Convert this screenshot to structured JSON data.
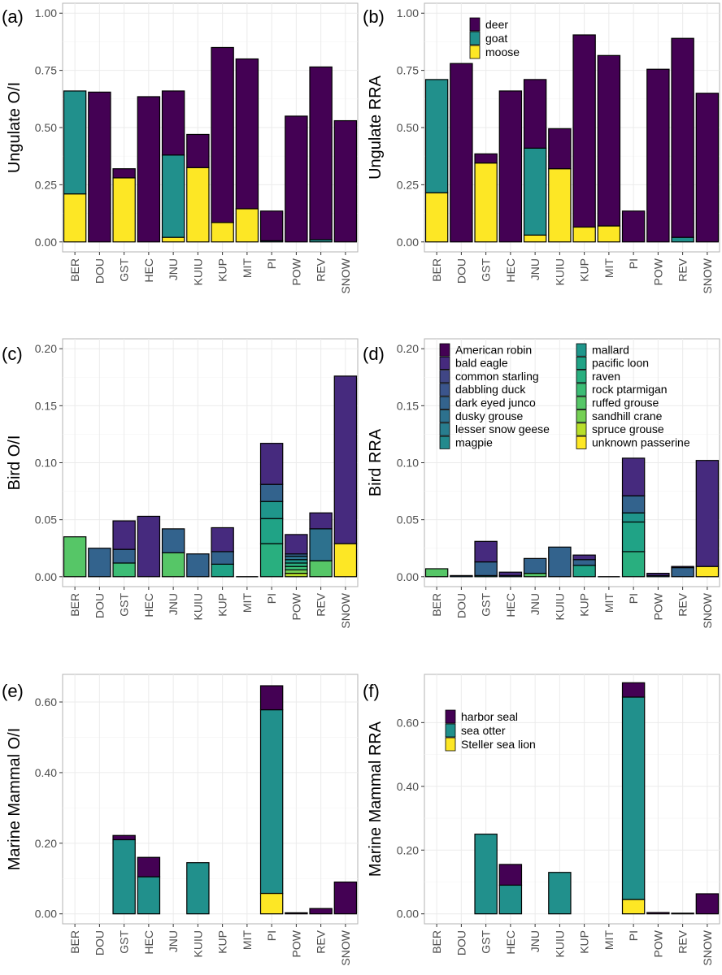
{
  "colors": {
    "deer": "#440154",
    "goat": "#21908C",
    "moose": "#FDE725",
    "harbor seal": "#440154",
    "sea otter": "#21908C",
    "Steller sea lion": "#FDE725",
    "American robin": "#440154",
    "bald eagle": "#462A7E",
    "common starling": "#404685",
    "dabbling duck": "#3B558C",
    "dark eyed junco": "#33638D",
    "dusky grouse": "#2D718E",
    "lesser snow geese": "#287D8E",
    "magpie": "#238A8D",
    "mallard": "#1F968B",
    "pacific loon": "#20A386",
    "raven": "#29AF7F",
    "rock ptarmigan": "#3CBC75",
    "ruffed grouse": "#56C667",
    "sandhill crane": "#75D054",
    "spruce grouse": "#B8DE29",
    "unknown passerine": "#FDE725"
  },
  "chart_data": [
    {
      "panel": "(a)",
      "type": "bar",
      "stacked": true,
      "ylabel": "Ungulate O/I",
      "ylim": [
        0,
        1.0
      ],
      "yticks": [
        "0.00",
        "0.25",
        "0.50",
        "0.75",
        "1.00"
      ],
      "ytick_values": [
        0,
        0.25,
        0.5,
        0.75,
        1.0
      ],
      "categories": [
        "BER",
        "DOU",
        "GST",
        "HEC",
        "JNU",
        "KUIU",
        "KUP",
        "MIT",
        "PI",
        "POW",
        "REV",
        "SNOW"
      ],
      "series": [
        {
          "name": "moose",
          "values": [
            0.21,
            0,
            0.28,
            0,
            0.02,
            0.325,
            0.085,
            0.145,
            0,
            0,
            0,
            0
          ]
        },
        {
          "name": "goat",
          "values": [
            0.45,
            0,
            0,
            0,
            0.36,
            0,
            0,
            0,
            0.005,
            0,
            0.01,
            0
          ]
        },
        {
          "name": "deer",
          "values": [
            0,
            0.655,
            0.04,
            0.635,
            0.28,
            0.145,
            0.765,
            0.655,
            0.13,
            0.55,
            0.755,
            0.53
          ]
        }
      ]
    },
    {
      "panel": "(b)",
      "type": "bar",
      "stacked": true,
      "ylabel": "Ungulate RRA",
      "ylim": [
        0,
        1.0
      ],
      "yticks": [
        "0.00",
        "0.25",
        "0.50",
        "0.75",
        "1.00"
      ],
      "ytick_values": [
        0,
        0.25,
        0.5,
        0.75,
        1.0
      ],
      "categories": [
        "BER",
        "DOU",
        "GST",
        "HEC",
        "JNU",
        "KUIU",
        "KUP",
        "MIT",
        "PI",
        "POW",
        "REV",
        "SNOW"
      ],
      "series": [
        {
          "name": "moose",
          "values": [
            0.215,
            0,
            0.345,
            0,
            0.03,
            0.32,
            0.065,
            0.07,
            0,
            0,
            0,
            0
          ]
        },
        {
          "name": "goat",
          "values": [
            0.495,
            0,
            0,
            0,
            0.38,
            0,
            0,
            0,
            0,
            0,
            0.02,
            0
          ]
        },
        {
          "name": "deer",
          "values": [
            0,
            0.78,
            0.04,
            0.66,
            0.3,
            0.175,
            0.84,
            0.745,
            0.135,
            0.755,
            0.87,
            0.65
          ]
        }
      ],
      "legend": {
        "position": "top-left",
        "entries": [
          "deer",
          "goat",
          "moose"
        ]
      }
    },
    {
      "panel": "(c)",
      "type": "bar",
      "stacked": true,
      "ylabel": "Bird O/I",
      "ylim": [
        0,
        0.2
      ],
      "yticks": [
        "0.00",
        "0.05",
        "0.10",
        "0.15",
        "0.20"
      ],
      "ytick_values": [
        0,
        0.05,
        0.1,
        0.15,
        0.2
      ],
      "categories": [
        "BER",
        "DOU",
        "GST",
        "HEC",
        "JNU",
        "KUIU",
        "KUP",
        "MIT",
        "PI",
        "POW",
        "REV",
        "SNOW"
      ],
      "series": [
        {
          "name": "unknown passerine",
          "values": [
            0,
            0,
            0,
            0,
            0,
            0,
            0,
            0,
            0,
            0,
            0,
            0.029
          ]
        },
        {
          "name": "spruce grouse",
          "values": [
            0,
            0,
            0,
            0,
            0,
            0,
            0,
            0,
            0,
            0.003,
            0,
            0
          ]
        },
        {
          "name": "sandhill crane",
          "values": [
            0,
            0,
            0,
            0,
            0,
            0,
            0,
            0,
            0,
            0.003,
            0,
            0
          ]
        },
        {
          "name": "ruffed grouse",
          "values": [
            0.035,
            0,
            0,
            0,
            0.021,
            0,
            0,
            0,
            0,
            0,
            0.014,
            0
          ]
        },
        {
          "name": "rock ptarmigan",
          "values": [
            0,
            0,
            0.012,
            0,
            0,
            0,
            0,
            0,
            0,
            0.003,
            0,
            0
          ]
        },
        {
          "name": "raven",
          "values": [
            0,
            0,
            0,
            0,
            0,
            0,
            0,
            0,
            0.029,
            0.003,
            0,
            0
          ]
        },
        {
          "name": "pacific loon",
          "values": [
            0,
            0,
            0,
            0,
            0,
            0,
            0.011,
            0,
            0.022,
            0,
            0,
            0
          ]
        },
        {
          "name": "mallard",
          "values": [
            0,
            0,
            0,
            0,
            0,
            0,
            0,
            0,
            0.015,
            0.003,
            0,
            0
          ]
        },
        {
          "name": "dusky grouse",
          "values": [
            0,
            0,
            0,
            0,
            0,
            0,
            0,
            0,
            0,
            0.003,
            0.028,
            0
          ]
        },
        {
          "name": "dark eyed junco",
          "values": [
            0,
            0.025,
            0.012,
            0,
            0.021,
            0.02,
            0.011,
            0,
            0.015,
            0.002,
            0,
            0
          ]
        },
        {
          "name": "bald eagle",
          "values": [
            0,
            0,
            0.025,
            0.053,
            0,
            0,
            0.021,
            0,
            0.036,
            0.017,
            0.014,
            0.147
          ]
        }
      ],
      "mit_zero_bar": true
    },
    {
      "panel": "(d)",
      "type": "bar",
      "stacked": true,
      "ylabel": "Bird RRA",
      "ylim": [
        0,
        0.2
      ],
      "yticks": [
        "0.00",
        "0.05",
        "0.10",
        "0.15",
        "0.20"
      ],
      "ytick_values": [
        0,
        0.05,
        0.1,
        0.15,
        0.2
      ],
      "categories": [
        "BER",
        "DOU",
        "GST",
        "HEC",
        "JNU",
        "KUIU",
        "KUP",
        "MIT",
        "PI",
        "POW",
        "REV",
        "SNOW"
      ],
      "series": [
        {
          "name": "unknown passerine",
          "values": [
            0,
            0,
            0,
            0,
            0,
            0,
            0,
            0,
            0,
            0,
            0,
            0.009
          ]
        },
        {
          "name": "ruffed grouse",
          "values": [
            0.007,
            0,
            0,
            0,
            0.003,
            0,
            0,
            0,
            0,
            0,
            0,
            0
          ]
        },
        {
          "name": "raven",
          "values": [
            0,
            0,
            0,
            0,
            0,
            0,
            0,
            0,
            0.022,
            0,
            0,
            0
          ]
        },
        {
          "name": "pacific loon",
          "values": [
            0,
            0,
            0.001,
            0,
            0,
            0,
            0.01,
            0,
            0.026,
            0,
            0,
            0
          ]
        },
        {
          "name": "mallard",
          "values": [
            0,
            0,
            0,
            0,
            0,
            0,
            0,
            0,
            0.008,
            0,
            0,
            0
          ]
        },
        {
          "name": "dark eyed junco",
          "values": [
            0,
            0.001,
            0.012,
            0.001,
            0.013,
            0.026,
            0.005,
            0,
            0.015,
            0.001,
            0.008,
            0
          ]
        },
        {
          "name": "bald eagle",
          "values": [
            0,
            0,
            0.018,
            0.003,
            0,
            0,
            0.004,
            0,
            0.033,
            0.002,
            0.001,
            0.093
          ]
        }
      ],
      "legend": {
        "position": "top",
        "columns": 2,
        "entries": [
          "American robin",
          "bald eagle",
          "common starling",
          "dabbling duck",
          "dark eyed junco",
          "dusky grouse",
          "lesser snow geese",
          "magpie",
          "mallard",
          "pacific loon",
          "raven",
          "rock ptarmigan",
          "ruffed grouse",
          "sandhill crane",
          "spruce grouse",
          "unknown passerine"
        ]
      },
      "mit_zero_bar": true
    },
    {
      "panel": "(e)",
      "type": "bar",
      "stacked": true,
      "ylabel": "Marine Mammal O/I",
      "ylim": [
        0,
        0.65
      ],
      "yticks": [
        "0.00",
        "0.20",
        "0.40",
        "0.60"
      ],
      "ytick_values": [
        0,
        0.2,
        0.4,
        0.6
      ],
      "categories": [
        "BER",
        "DOU",
        "GST",
        "HEC",
        "JNU",
        "KUIU",
        "KUP",
        "MIT",
        "PI",
        "POW",
        "REV",
        "SNOW"
      ],
      "series": [
        {
          "name": "Steller sea lion",
          "values": [
            0,
            0,
            0,
            0,
            0,
            0,
            0,
            0,
            0.058,
            0,
            0,
            0
          ]
        },
        {
          "name": "sea otter",
          "values": [
            0,
            0,
            0.21,
            0.105,
            0,
            0.145,
            0,
            0,
            0.52,
            0,
            0,
            0
          ]
        },
        {
          "name": "harbor seal",
          "values": [
            0,
            0,
            0.012,
            0.055,
            0,
            0,
            0,
            0,
            0.068,
            0.003,
            0.015,
            0.09
          ]
        }
      ]
    },
    {
      "panel": "(f)",
      "type": "bar",
      "stacked": true,
      "ylabel": "Marine Mammal RRA",
      "ylim": [
        0,
        0.72
      ],
      "yticks": [
        "0.00",
        "0.20",
        "0.40",
        "0.60"
      ],
      "ytick_values": [
        0,
        0.2,
        0.4,
        0.6
      ],
      "categories": [
        "BER",
        "DOU",
        "GST",
        "HEC",
        "JNU",
        "KUIU",
        "KUP",
        "MIT",
        "PI",
        "POW",
        "REV",
        "SNOW"
      ],
      "series": [
        {
          "name": "Steller sea lion",
          "values": [
            0,
            0,
            0,
            0,
            0,
            0,
            0,
            0,
            0.045,
            0,
            0,
            0
          ]
        },
        {
          "name": "sea otter",
          "values": [
            0,
            0,
            0.25,
            0.09,
            0,
            0.13,
            0,
            0,
            0.635,
            0,
            0,
            0
          ]
        },
        {
          "name": "harbor seal",
          "values": [
            0,
            0,
            0,
            0.065,
            0,
            0,
            0,
            0,
            0.045,
            0.004,
            0.002,
            0.063
          ]
        }
      ],
      "legend": {
        "position": "top-left",
        "entries": [
          "harbor seal",
          "sea otter",
          "Steller sea lion"
        ]
      }
    }
  ]
}
